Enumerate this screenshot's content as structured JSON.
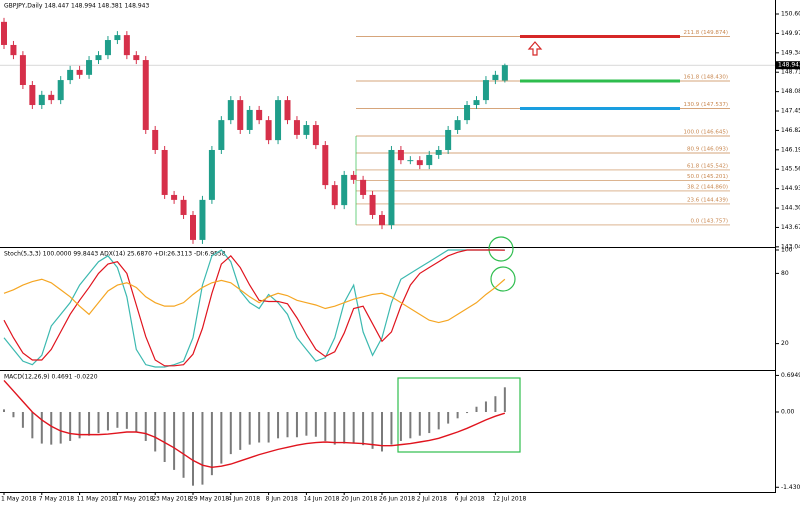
{
  "chart_data": [
    {
      "type": "candlestick",
      "title": "GBPJPY,Daily  148.447 148.994 148.381 148.943",
      "categories": [
        "1 May 2018",
        null,
        null,
        null,
        "7 May 2018",
        null,
        null,
        null,
        "11 May 2018",
        null,
        null,
        null,
        "17 May 2018",
        null,
        null,
        null,
        "23 May 2018",
        null,
        null,
        null,
        "29 May 2018",
        null,
        null,
        null,
        "4 Jun 2018",
        null,
        null,
        null,
        "8 Jun 2018",
        null,
        null,
        null,
        "14 Jun 2018",
        null,
        null,
        null,
        "20 Jun 2018",
        null,
        null,
        null,
        "26 Jun 2018",
        null,
        null,
        null,
        "2 Jul 2018",
        null,
        null,
        null,
        "6 Jul 2018",
        null,
        null,
        null,
        "12 Jul 2018",
        null
      ],
      "open": [
        150.35,
        149.6,
        149.27,
        148.3,
        147.65,
        147.98,
        147.81,
        148.46,
        148.79,
        148.63,
        149.11,
        149.27,
        149.76,
        149.92,
        149.27,
        149.11,
        146.84,
        146.19,
        144.73,
        144.57,
        144.08,
        143.27,
        144.57,
        146.19,
        147.16,
        147.81,
        146.84,
        147.49,
        147.16,
        146.51,
        147.81,
        147.16,
        146.68,
        147.0,
        146.35,
        145.05,
        144.4,
        145.38,
        145.22,
        144.73,
        144.08,
        143.75,
        146.19,
        145.86,
        145.86,
        145.7,
        146.03,
        146.19,
        146.84,
        147.16,
        147.65,
        147.81,
        148.46,
        148.447
      ],
      "high": [
        150.48,
        149.73,
        149.4,
        148.43,
        148.11,
        148.11,
        148.59,
        148.92,
        148.92,
        149.24,
        149.4,
        149.89,
        150.05,
        150.05,
        149.4,
        149.24,
        146.97,
        146.32,
        144.86,
        144.7,
        144.21,
        144.7,
        146.32,
        147.29,
        147.94,
        147.94,
        147.62,
        147.62,
        147.29,
        147.94,
        147.94,
        147.29,
        147.13,
        147.13,
        146.48,
        145.18,
        145.51,
        145.51,
        145.35,
        144.86,
        144.21,
        146.32,
        146.32,
        145.99,
        145.99,
        146.16,
        146.32,
        146.97,
        147.29,
        147.78,
        147.94,
        148.59,
        148.76,
        148.994
      ],
      "low": [
        149.47,
        149.14,
        148.17,
        147.52,
        147.52,
        147.68,
        147.68,
        148.33,
        148.5,
        148.5,
        148.98,
        149.14,
        149.63,
        149.14,
        148.98,
        146.71,
        146.06,
        144.6,
        144.44,
        143.95,
        143.14,
        143.14,
        144.44,
        146.06,
        147.03,
        146.71,
        146.71,
        147.03,
        146.38,
        146.38,
        147.03,
        146.55,
        146.55,
        146.22,
        144.92,
        144.27,
        144.27,
        145.09,
        144.6,
        143.95,
        143.62,
        143.62,
        145.73,
        145.73,
        145.57,
        145.57,
        145.9,
        146.06,
        146.71,
        147.03,
        147.52,
        147.68,
        148.33,
        148.381
      ],
      "close": [
        149.6,
        149.27,
        148.3,
        147.65,
        147.98,
        147.81,
        148.46,
        148.79,
        148.63,
        149.11,
        149.27,
        149.76,
        149.92,
        149.27,
        149.11,
        146.84,
        146.19,
        144.73,
        144.57,
        144.08,
        143.27,
        144.57,
        146.19,
        147.16,
        147.81,
        146.84,
        147.49,
        147.16,
        146.51,
        147.81,
        147.16,
        146.68,
        147.0,
        146.35,
        145.05,
        144.4,
        145.38,
        145.22,
        144.73,
        144.08,
        143.75,
        146.19,
        145.86,
        145.86,
        145.7,
        146.03,
        146.19,
        146.84,
        147.16,
        147.65,
        147.81,
        148.46,
        148.63,
        148.943
      ],
      "up_color": "#1f9e8a",
      "down_color": "#d6304a",
      "ylim": [
        143.04,
        151.06
      ],
      "yticks": [
        150.605,
        149.975,
        149.345,
        148.715,
        148.085,
        147.455,
        146.825,
        146.195,
        145.565,
        144.935,
        144.305,
        143.675,
        143.045
      ],
      "fib_levels": [
        {
          "value": 149.874,
          "label": "211.8 (149.874)",
          "color": "#d62828"
        },
        {
          "value": 148.43,
          "label": "161.8 (148.430)",
          "color": "#2ebd4e"
        },
        {
          "value": 147.537,
          "label": "130.9 (147.537)",
          "color": "#1a9ee0"
        },
        {
          "value": 146.645,
          "label": "100.0 (146.645)"
        },
        {
          "value": 146.093,
          "label": "80.9 (146.093)"
        },
        {
          "value": 145.542,
          "label": "61.8 (145.542)"
        },
        {
          "value": 145.201,
          "label": "50.0 (145.201)"
        },
        {
          "value": 144.86,
          "label": "38.2 (144.860)"
        },
        {
          "value": 144.439,
          "label": "23.6 (144.439)"
        },
        {
          "value": 143.757,
          "label": "0.0 (143.757)"
        }
      ],
      "fib_color": "#c8874f"
    },
    {
      "type": "line",
      "title": "Stoch(5,3,3) 100.0000 99.8443  ADX(14) 25.6870 +DI:26.3113 -DI:6.9558",
      "series": [
        {
          "color": "#3cb9b0",
          "values": [
            25,
            15,
            5,
            2,
            10,
            35,
            45,
            55,
            70,
            80,
            90,
            95,
            85,
            60,
            15,
            2,
            0,
            0,
            2,
            5,
            25,
            70,
            95,
            100,
            90,
            65,
            55,
            50,
            62,
            55,
            45,
            25,
            15,
            5,
            8,
            25,
            55,
            70,
            30,
            10,
            25,
            55,
            75,
            80,
            85,
            90,
            95,
            100,
            100,
            100,
            100,
            100,
            100,
            100
          ]
        },
        {
          "color": "#e0141e",
          "values": [
            40,
            25,
            12,
            6,
            6,
            15,
            30,
            45,
            57,
            68,
            80,
            88,
            90,
            80,
            53,
            26,
            6,
            1,
            1,
            2,
            11,
            33,
            63,
            88,
            95,
            85,
            70,
            57,
            56,
            56,
            54,
            42,
            28,
            15,
            9,
            13,
            29,
            50,
            52,
            37,
            22,
            30,
            52,
            70,
            80,
            85,
            90,
            95,
            98,
            100,
            100,
            100,
            100,
            99.8443
          ]
        },
        {
          "color": "#f5a623",
          "values": [
            63,
            66,
            70,
            73,
            75,
            72,
            66,
            60,
            52,
            45,
            55,
            65,
            70,
            72,
            68,
            60,
            55,
            52,
            52,
            55,
            62,
            68,
            72,
            74,
            72,
            66,
            60,
            55,
            60,
            63,
            61,
            57,
            55,
            53,
            50,
            52,
            55,
            58,
            60,
            62,
            63,
            60,
            55,
            50,
            45,
            40,
            38,
            40,
            45,
            50,
            55,
            62,
            68,
            75
          ]
        }
      ],
      "ylim": [
        0,
        100
      ],
      "yticks": [
        100,
        80,
        20
      ]
    },
    {
      "type": "macd",
      "title": "MACD(12,26,9) 0.4691 -0.0220",
      "series": [
        {
          "color": "#7a7a7a",
          "values": [
            0.05,
            -0.1,
            -0.3,
            -0.5,
            -0.6,
            -0.62,
            -0.6,
            -0.55,
            -0.5,
            -0.45,
            -0.4,
            -0.35,
            -0.3,
            -0.32,
            -0.38,
            -0.55,
            -0.75,
            -0.95,
            -1.1,
            -1.25,
            -1.4,
            -1.38,
            -1.2,
            -0.98,
            -0.8,
            -0.72,
            -0.62,
            -0.58,
            -0.58,
            -0.5,
            -0.48,
            -0.48,
            -0.45,
            -0.47,
            -0.55,
            -0.62,
            -0.6,
            -0.6,
            -0.63,
            -0.7,
            -0.75,
            -0.62,
            -0.55,
            -0.5,
            -0.45,
            -0.4,
            -0.33,
            -0.22,
            -0.12,
            -0.02,
            0.1,
            0.2,
            0.3,
            0.4691
          ]
        },
        {
          "color": "#e0141e",
          "values": [
            0.6,
            0.4,
            0.2,
            0.0,
            -0.15,
            -0.27,
            -0.36,
            -0.41,
            -0.43,
            -0.43,
            -0.43,
            -0.42,
            -0.4,
            -0.38,
            -0.38,
            -0.41,
            -0.48,
            -0.58,
            -0.68,
            -0.8,
            -0.92,
            -1.01,
            -1.05,
            -1.03,
            -0.99,
            -0.93,
            -0.87,
            -0.81,
            -0.76,
            -0.71,
            -0.67,
            -0.63,
            -0.6,
            -0.58,
            -0.57,
            -0.58,
            -0.58,
            -0.59,
            -0.6,
            -0.62,
            -0.64,
            -0.64,
            -0.62,
            -0.6,
            -0.57,
            -0.54,
            -0.5,
            -0.44,
            -0.38,
            -0.31,
            -0.23,
            -0.15,
            -0.08,
            -0.022
          ]
        }
      ],
      "ylim": [
        -1.52,
        0.76
      ],
      "yticks": [
        {
          "value": 0.6949,
          "label": "0.6949"
        },
        {
          "value": 0,
          "label": "0.00"
        },
        {
          "value": -1.4302,
          "label": "-1.4302"
        }
      ]
    }
  ]
}
